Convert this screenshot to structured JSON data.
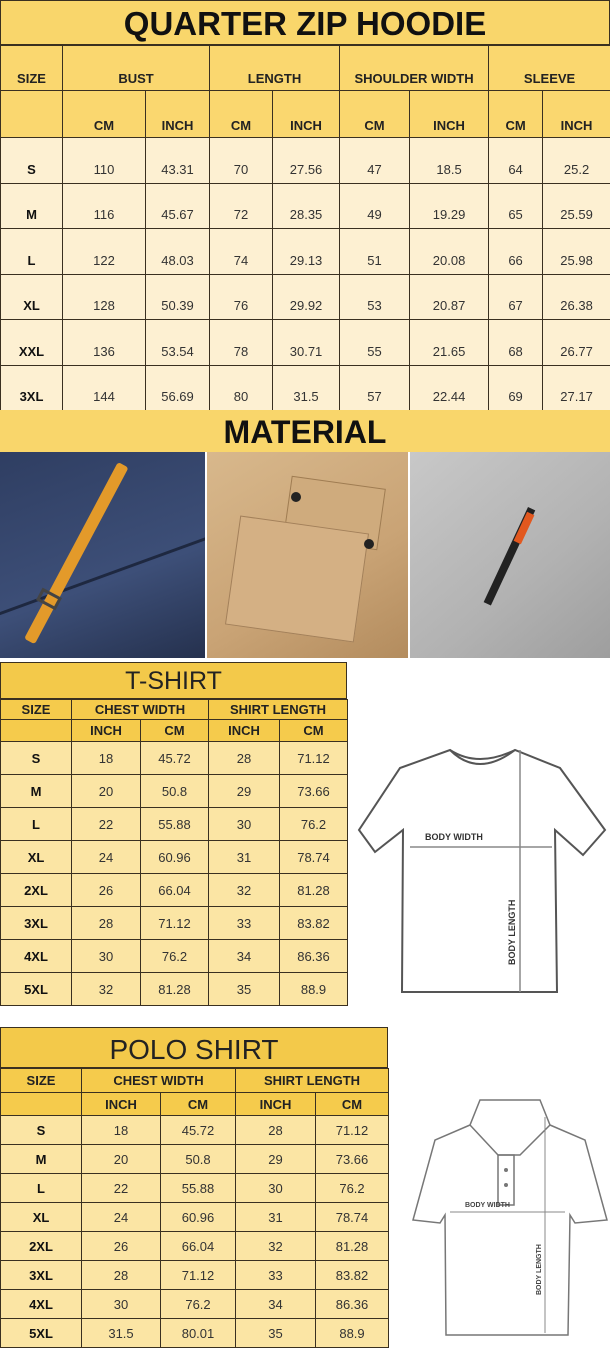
{
  "hoodie": {
    "title": "QUARTER ZIP HOODIE",
    "headers": [
      "SIZE",
      "BUST",
      "LENGTH",
      "SHOULDER WIDTH",
      "SLEEVE"
    ],
    "subheaders": [
      "CM",
      "INCH",
      "CM",
      "INCH",
      "CM",
      "INCH",
      "CM",
      "INCH"
    ],
    "rows": [
      [
        "S",
        "110",
        "43.31",
        "70",
        "27.56",
        "47",
        "18.5",
        "64",
        "25.2"
      ],
      [
        "M",
        "116",
        "45.67",
        "72",
        "28.35",
        "49",
        "19.29",
        "65",
        "25.59"
      ],
      [
        "L",
        "122",
        "48.03",
        "74",
        "29.13",
        "51",
        "20.08",
        "66",
        "25.98"
      ],
      [
        "XL",
        "128",
        "50.39",
        "76",
        "29.92",
        "53",
        "20.87",
        "67",
        "26.38"
      ],
      [
        "XXL",
        "136",
        "53.54",
        "78",
        "30.71",
        "55",
        "21.65",
        "68",
        "26.77"
      ],
      [
        "3XL",
        "144",
        "56.69",
        "80",
        "31.5",
        "57",
        "22.44",
        "69",
        "27.17"
      ]
    ]
  },
  "material": {
    "title": "MATERIAL"
  },
  "tshirt": {
    "title": "T-SHIRT",
    "headers": [
      "SIZE",
      "CHEST WIDTH",
      "SHIRT LENGTH"
    ],
    "subheaders": [
      "INCH",
      "CM",
      "INCH",
      "CM"
    ],
    "rows": [
      [
        "S",
        "18",
        "45.72",
        "28",
        "71.12"
      ],
      [
        "M",
        "20",
        "50.8",
        "29",
        "73.66"
      ],
      [
        "L",
        "22",
        "55.88",
        "30",
        "76.2"
      ],
      [
        "XL",
        "24",
        "60.96",
        "31",
        "78.74"
      ],
      [
        "2XL",
        "26",
        "66.04",
        "32",
        "81.28"
      ],
      [
        "3XL",
        "28",
        "71.12",
        "33",
        "83.82"
      ],
      [
        "4XL",
        "30",
        "76.2",
        "34",
        "86.36"
      ],
      [
        "5XL",
        "32",
        "81.28",
        "35",
        "88.9"
      ]
    ],
    "diagram": {
      "body_width": "BODY WIDTH",
      "body_length": "BODY LENGTH"
    }
  },
  "polo": {
    "title": "POLO SHIRT",
    "headers": [
      "SIZE",
      "CHEST WIDTH",
      "SHIRT LENGTH"
    ],
    "subheaders": [
      "INCH",
      "CM",
      "INCH",
      "CM"
    ],
    "rows": [
      [
        "S",
        "18",
        "45.72",
        "28",
        "71.12"
      ],
      [
        "M",
        "20",
        "50.8",
        "29",
        "73.66"
      ],
      [
        "L",
        "22",
        "55.88",
        "30",
        "76.2"
      ],
      [
        "XL",
        "24",
        "60.96",
        "31",
        "78.74"
      ],
      [
        "2XL",
        "26",
        "66.04",
        "32",
        "81.28"
      ],
      [
        "3XL",
        "28",
        "71.12",
        "33",
        "83.82"
      ],
      [
        "4XL",
        "30",
        "76.2",
        "34",
        "86.36"
      ],
      [
        "5XL",
        "31.5",
        "80.01",
        "35",
        "88.9"
      ]
    ],
    "diagram": {
      "body_width": "BODY WIDTH",
      "body_length": "BODY LENGTH"
    }
  },
  "colors": {
    "header_gold": "#f9d66b",
    "cell_cream": "#fdf0d2",
    "tee_gold": "#f5cb4c",
    "tee_cell": "#fbe5a4"
  }
}
